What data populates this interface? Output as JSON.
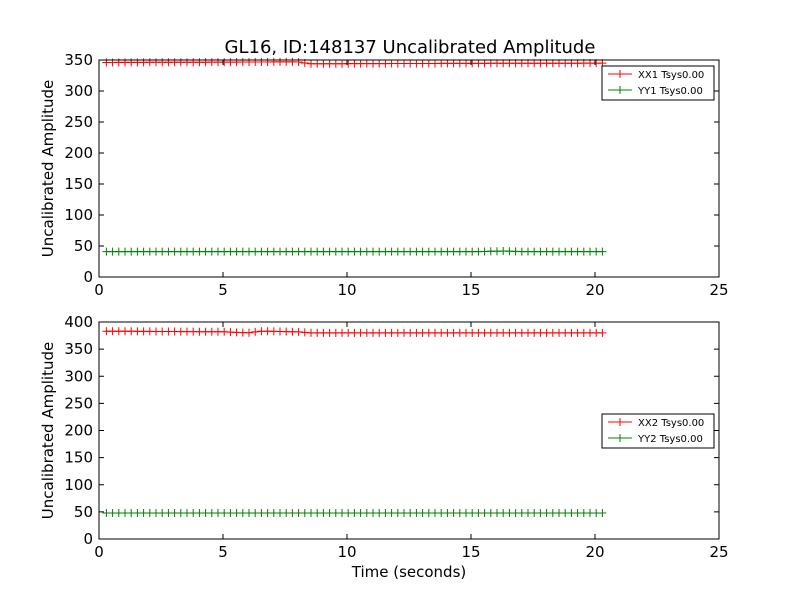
{
  "figure": {
    "title": "GL16, ID:148137 Uncalibrated Amplitude"
  },
  "chart_data": [
    {
      "type": "line",
      "title": "GL16, ID:148137 Uncalibrated Amplitude",
      "xlabel": "",
      "ylabel": "Uncalibrated Amplitude",
      "xlim": [
        0,
        25
      ],
      "ylim": [
        0,
        350
      ],
      "xticks": [
        0,
        5,
        10,
        15,
        20,
        25
      ],
      "yticks": [
        0,
        50,
        100,
        150,
        200,
        250,
        300,
        350
      ],
      "legend_position": "top-right",
      "x": {
        "start": 0.3,
        "stop": 20.5,
        "step": 0.25
      },
      "series": [
        {
          "name": "XX1 Tsys0.00",
          "color": "#ff0000",
          "marker": "plus",
          "level": 346,
          "segments": [
            [
              0.3,
              346
            ],
            [
              8.0,
              347
            ],
            [
              8.5,
              344
            ],
            [
              20.5,
              345
            ]
          ]
        },
        {
          "name": "YY1 Tsys0.00",
          "color": "#008000",
          "marker": "plus",
          "level": 41,
          "segments": [
            [
              0.3,
              41
            ],
            [
              15.5,
              41
            ],
            [
              16.3,
              42
            ],
            [
              17.0,
              41
            ],
            [
              20.5,
              41
            ]
          ]
        }
      ]
    },
    {
      "type": "line",
      "title": "",
      "xlabel": "Time (seconds)",
      "ylabel": "Uncalibrated Amplitude",
      "xlim": [
        0,
        25
      ],
      "ylim": [
        0,
        400
      ],
      "xticks": [
        0,
        5,
        10,
        15,
        20,
        25
      ],
      "yticks": [
        0,
        50,
        100,
        150,
        200,
        250,
        300,
        350,
        400
      ],
      "legend_position": "center-right",
      "x": {
        "start": 0.3,
        "stop": 20.5,
        "step": 0.25
      },
      "series": [
        {
          "name": "XX2 Tsys0.00",
          "color": "#ff0000",
          "marker": "plus",
          "level": 382,
          "segments": [
            [
              0.3,
              383
            ],
            [
              5.0,
              382
            ],
            [
              6.0,
              380
            ],
            [
              6.5,
              383
            ],
            [
              8.0,
              382
            ],
            [
              8.5,
              380
            ],
            [
              20.5,
              380
            ]
          ]
        },
        {
          "name": "YY2 Tsys0.00",
          "color": "#008000",
          "marker": "plus",
          "level": 48,
          "segments": [
            [
              0.3,
              48
            ],
            [
              20.5,
              48
            ]
          ]
        }
      ]
    }
  ]
}
